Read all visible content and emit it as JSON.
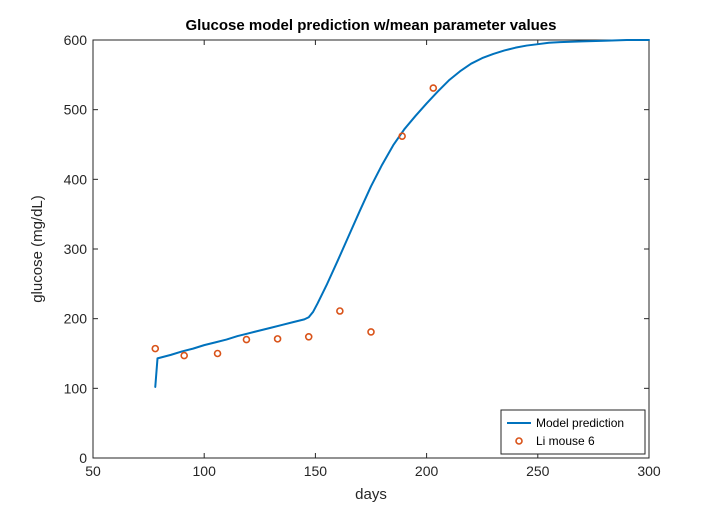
{
  "chart_data": {
    "type": "line",
    "title": "Glucose model prediction w/mean parameter values",
    "xlabel": "days",
    "ylabel": "glucose (mg/dL)",
    "xlim": [
      50,
      300
    ],
    "ylim": [
      0,
      600
    ],
    "xticks": [
      50,
      100,
      150,
      200,
      250,
      300
    ],
    "yticks": [
      0,
      100,
      200,
      300,
      400,
      500,
      600
    ],
    "grid": false,
    "legend_position": "bottom-right",
    "series": [
      {
        "name": "Model prediction",
        "kind": "line",
        "color": "#0072BD",
        "x": [
          78,
          79,
          85,
          90,
          95,
          100,
          105,
          110,
          115,
          120,
          125,
          130,
          135,
          140,
          145,
          147,
          149,
          151,
          155,
          160,
          165,
          170,
          175,
          180,
          185,
          190,
          195,
          200,
          205,
          210,
          215,
          220,
          225,
          230,
          235,
          240,
          245,
          250,
          255,
          260,
          270,
          280,
          290,
          300
        ],
        "y": [
          102,
          143,
          148,
          153,
          157,
          162,
          166,
          170,
          175,
          179,
          183,
          187,
          191,
          195,
          199,
          202,
          210,
          222,
          248,
          283,
          319,
          355,
          390,
          421,
          449,
          472,
          491,
          509,
          526,
          542,
          555,
          566,
          574,
          580,
          585,
          589,
          592,
          594,
          596,
          597,
          598,
          599,
          600,
          600
        ]
      },
      {
        "name": "Li mouse 6",
        "kind": "scatter",
        "color": "#D95319",
        "x": [
          78,
          91,
          106,
          119,
          133,
          147,
          161,
          175,
          189,
          203
        ],
        "y": [
          157,
          147,
          150,
          170,
          171,
          174,
          211,
          181,
          462,
          531
        ]
      }
    ]
  }
}
